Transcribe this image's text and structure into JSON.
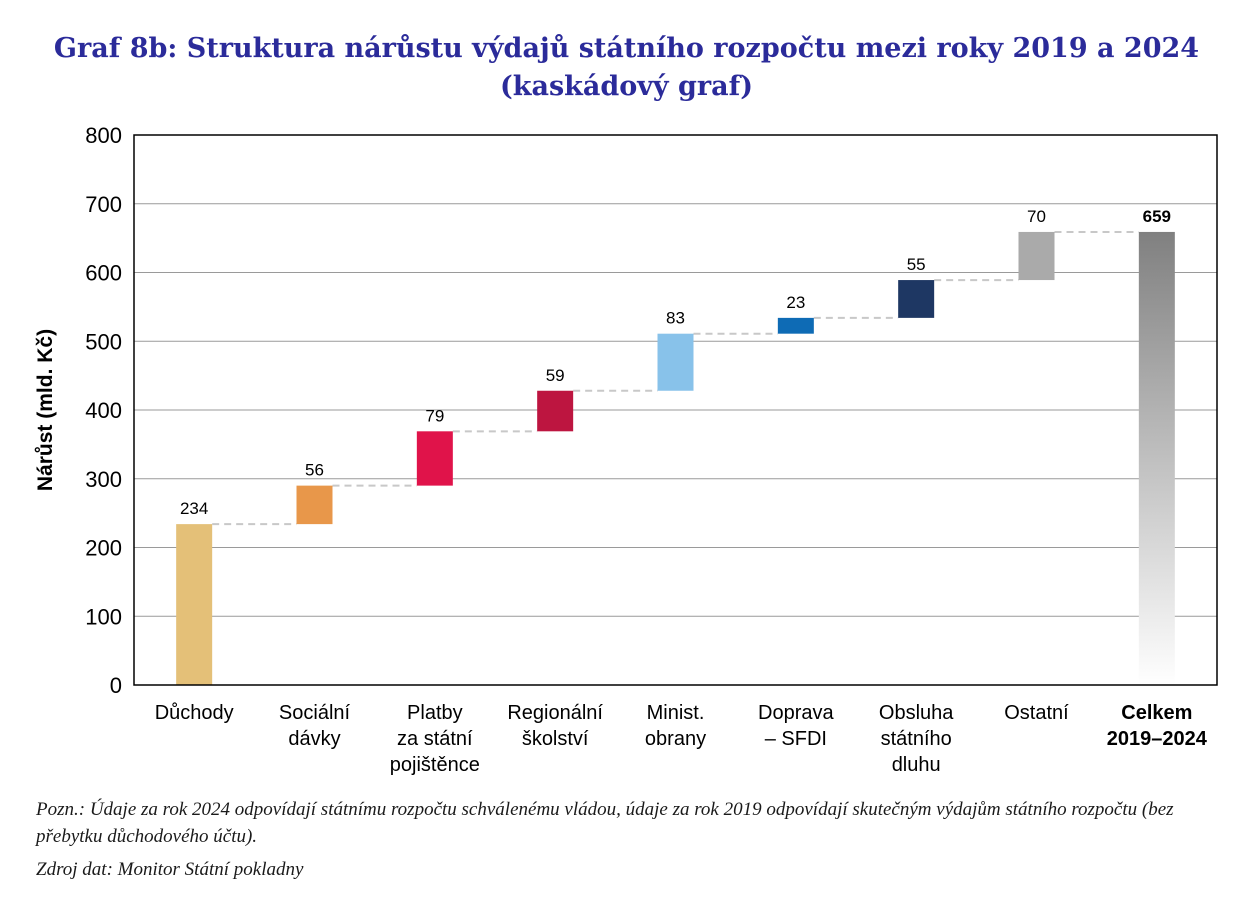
{
  "title_line1": "Graf 8b: Struktura nárůstu výdajů státního rozpočtu mezi roky 2019 a 2024",
  "title_line2": "(kaskádový graf)",
  "note": "Pozn.: Údaje za rok 2024 odpovídají státnímu rozpočtu schválenému vládou, údaje za rok 2019 odpovídají skutečným výdajům státního rozpočtu (bez přebytku důchodového účtu).",
  "source": "Zdroj dat: Monitor Státní pokladny",
  "chart_data": {
    "type": "waterfall",
    "ylabel": "Nárůst (mld. Kč)",
    "ylim": [
      0,
      800
    ],
    "yticks": [
      0,
      100,
      200,
      300,
      400,
      500,
      600,
      700,
      800
    ],
    "grid": true,
    "categories": [
      [
        "Důchody"
      ],
      [
        "Sociální",
        "dávky"
      ],
      [
        "Platby",
        "za státní",
        "pojištěnce"
      ],
      [
        "Regionální",
        "školství"
      ],
      [
        "Minist.",
        "obrany"
      ],
      [
        "Doprava",
        "– SFDI"
      ],
      [
        "Obsluha",
        "státního",
        "dluhu"
      ],
      [
        "Ostatní"
      ],
      [
        "Celkem",
        "2019–2024"
      ]
    ],
    "values": [
      234,
      56,
      79,
      59,
      83,
      23,
      55,
      70,
      659
    ],
    "value_labels": [
      "234",
      "56",
      "79",
      "59",
      "83",
      "23",
      "55",
      "70",
      "659"
    ],
    "total_index": 8,
    "colors": [
      "#e4c078",
      "#e8974a",
      "#e0134a",
      "#bd1540",
      "#88c2ea",
      "#0e6bb5",
      "#1e3763",
      "#aaaaaa",
      "#808080"
    ]
  }
}
